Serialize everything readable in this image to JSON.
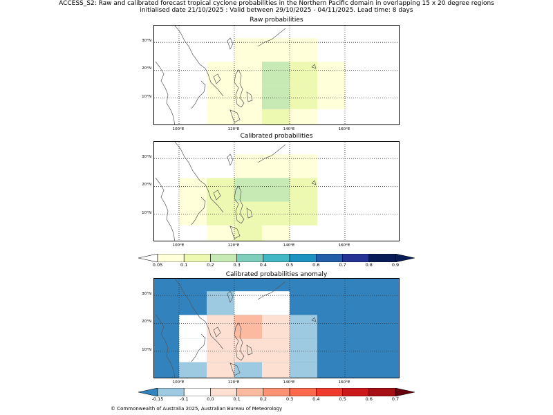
{
  "header": {
    "line1": "ACCESS_S2: Raw and calibrated forecast tropical cyclone probabilities in the Northern Pacific domain in overlapping 15 x 20 degree regions",
    "line2": "initialised date 21/10/2025 :  Valid between 29/10/2025 - 04/11/2025. Lead time: 8 days"
  },
  "axes": {
    "lat_labels": [
      "30°N",
      "20°N",
      "10°N"
    ],
    "lon_labels": [
      "100°E",
      "120°E",
      "140°E",
      "160°E"
    ]
  },
  "panels": {
    "raw": {
      "title": "Raw probabilities",
      "grid_lon0": 100,
      "grid_lat0": 0,
      "cell_deg": 10,
      "cells": [
        [
          0,
          0,
          0,
          0,
          0,
          0
        ],
        [
          0,
          0,
          1,
          1,
          1,
          0
        ],
        [
          0,
          1,
          1,
          3,
          2,
          1
        ],
        [
          0,
          1,
          1,
          3,
          2,
          1
        ],
        [
          0,
          1,
          1,
          2,
          1,
          0
        ]
      ]
    },
    "calibrated": {
      "title": "Calibrated probabilities",
      "cells": [
        [
          0,
          0,
          0,
          0,
          0,
          0
        ],
        [
          0,
          0,
          1,
          1,
          1,
          0
        ],
        [
          1,
          2,
          3,
          3,
          2,
          0
        ],
        [
          1,
          2,
          2,
          2,
          2,
          0
        ],
        [
          0,
          1,
          2,
          1,
          0,
          0
        ]
      ]
    },
    "anomaly": {
      "title": "Calibrated probabilities anomaly",
      "cells": [
        [
          0,
          0,
          0,
          0,
          0,
          0,
          0
        ],
        [
          0,
          0,
          1,
          2,
          2,
          0,
          0
        ],
        [
          0,
          2,
          3,
          4,
          3,
          1,
          0
        ],
        [
          0,
          2,
          3,
          3,
          3,
          1,
          0
        ],
        [
          0,
          1,
          3,
          1,
          3,
          1,
          0
        ]
      ]
    }
  },
  "prob_colorbar": {
    "labels": [
      "0.05",
      "0.1",
      "0.2",
      "0.3",
      "0.4",
      "0.5",
      "0.6",
      "0.7",
      "0.8",
      "0.9"
    ],
    "colors": [
      "#ffffd9",
      "#edf8b1",
      "#c7e9b4",
      "#7fcdbb",
      "#41b6c4",
      "#1d91c0",
      "#225ea8",
      "#253494",
      "#081d58"
    ]
  },
  "anom_colorbar": {
    "labels": [
      "-0.15",
      "-0.1",
      "0.0",
      "0.1",
      "0.2",
      "0.3",
      "0.4",
      "0.5",
      "0.6",
      "0.7"
    ],
    "colors": [
      "#9ecae1",
      "#ffffff",
      "#fee0d2",
      "#fcbba1",
      "#fc9272",
      "#fb6a4a",
      "#ef3b2c",
      "#cb181d",
      "#a50f15"
    ],
    "under_color": "#3182bd",
    "over_color": "#67000d"
  },
  "footer": {
    "credit": "© Commonwealth of Australia 2025, Australian Bureau of Meteorology"
  }
}
